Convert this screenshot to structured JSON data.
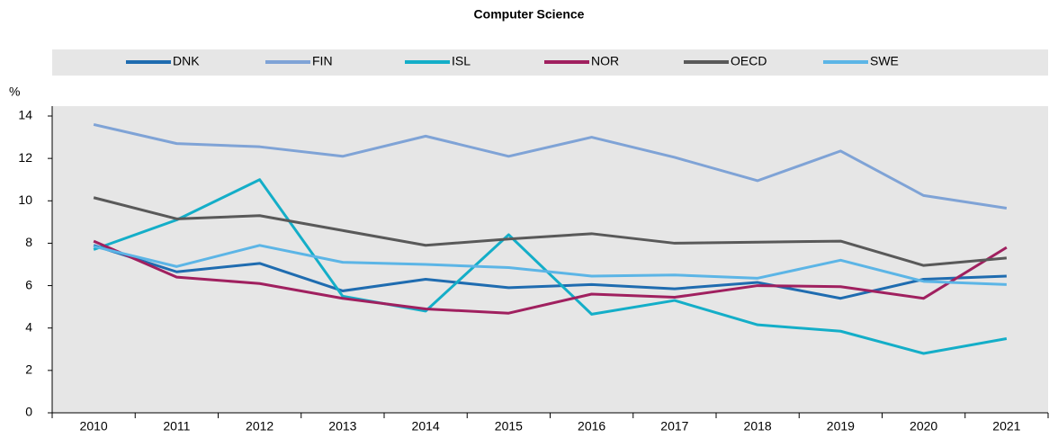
{
  "chart_data": {
    "type": "line",
    "title": "Computer Science",
    "y_label": "%",
    "categories": [
      "2010",
      "2011",
      "2012",
      "2013",
      "2014",
      "2015",
      "2016",
      "2017",
      "2018",
      "2019",
      "2020",
      "2021"
    ],
    "series": [
      {
        "name": "DNK",
        "color": "#1f6cb0",
        "values": [
          7.9,
          6.65,
          7.05,
          5.75,
          6.3,
          5.9,
          6.05,
          5.85,
          6.15,
          5.4,
          6.3,
          6.45
        ]
      },
      {
        "name": "FIN",
        "color": "#7fa3d6",
        "values": [
          13.6,
          12.7,
          12.55,
          12.1,
          13.05,
          12.1,
          13.0,
          12.05,
          10.95,
          12.35,
          10.25,
          9.65
        ]
      },
      {
        "name": "ISL",
        "color": "#14aec8",
        "values": [
          7.7,
          9.1,
          11.0,
          5.5,
          4.8,
          8.4,
          4.65,
          5.3,
          4.15,
          3.85,
          2.8,
          3.5
        ]
      },
      {
        "name": "NOR",
        "color": "#a0205f",
        "values": [
          8.1,
          6.4,
          6.1,
          5.4,
          4.9,
          4.7,
          5.6,
          5.45,
          6.0,
          5.95,
          5.4,
          7.8
        ]
      },
      {
        "name": "OECD",
        "color": "#595959",
        "values": [
          10.15,
          9.15,
          9.3,
          8.6,
          7.9,
          8.2,
          8.45,
          8.0,
          8.05,
          8.1,
          6.95,
          7.3
        ]
      },
      {
        "name": "SWE",
        "color": "#5cb5e6",
        "values": [
          7.85,
          6.9,
          7.9,
          7.1,
          7.0,
          6.85,
          6.45,
          6.5,
          6.35,
          7.2,
          6.2,
          6.05
        ]
      }
    ],
    "ylim": [
      0,
      14
    ],
    "yticks": [
      0,
      2,
      4,
      6,
      8,
      10,
      12,
      14
    ],
    "legend": "top"
  }
}
